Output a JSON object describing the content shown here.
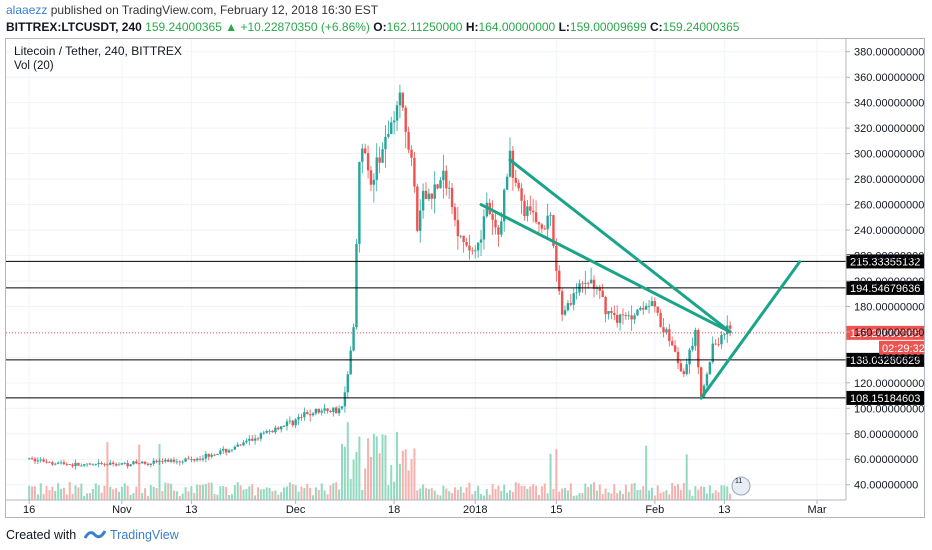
{
  "header": {
    "author": "alaaezz",
    "published": "published on TradingView.com, February 12, 2018 16:30 EST",
    "symbol": "BITTREX:LTCUSDT, 240",
    "last": "159.24000365",
    "change": "+10.22870350 (+6.86%)",
    "o_label": "O:",
    "o_value": "162.11250000",
    "h_label": "H:",
    "h_value": "164.00000000",
    "l_label": "L:",
    "l_value": "159.00009699",
    "c_label": "C:",
    "c_value": "159.24000365"
  },
  "footer": {
    "created_with": "Created with",
    "brand": "TradingView"
  },
  "chart_data": {
    "type": "candlestick",
    "title": "Litecoin / Tether, 240, BITTREX",
    "volume_label": "Vol (20)",
    "y_axis": {
      "range": [
        28,
        390
      ],
      "ticks": [
        "40.00000000",
        "60.00000000",
        "80.00000000",
        "100.00000000",
        "120.00000000",
        "140.00000000",
        "160.00000000",
        "180.00000000",
        "200.00000000",
        "220.00000000",
        "240.00000000",
        "260.00000000",
        "280.00000000",
        "300.00000000",
        "320.00000000",
        "340.00000000",
        "360.00000000",
        "380.00000000"
      ]
    },
    "x_axis": {
      "labels": [
        "16",
        "Nov",
        "13",
        "Dec",
        "18",
        "2018",
        "15",
        "Feb",
        "13",
        "Mar"
      ]
    },
    "horizontal_levels": [
      {
        "value": 215.33355132,
        "label": "215.33355132"
      },
      {
        "value": 194.54679636,
        "label": "194.54679636"
      },
      {
        "value": 138.03280629,
        "label": "138.03280629"
      },
      {
        "value": 108.15184603,
        "label": "108.15184603"
      }
    ],
    "last_price": {
      "value": 159.24000365,
      "label": "159.24000365",
      "countdown": "02:29:32"
    },
    "trendlines": [
      {
        "from": [
          "Jan 07",
          295
        ],
        "to": [
          "Feb 14",
          160
        ]
      },
      {
        "from": [
          "Jan 02",
          260
        ],
        "to": [
          "Feb 14",
          160
        ]
      },
      {
        "from": [
          "Feb 09",
          108
        ],
        "to": [
          "Feb 26",
          215
        ]
      }
    ],
    "price_path": [
      [
        "Oct 16",
        60
      ],
      [
        "Oct 25",
        55
      ],
      [
        "Nov 04",
        57
      ],
      [
        "Nov 13",
        60
      ],
      [
        "Nov 20",
        68
      ],
      [
        "Nov 28",
        85
      ],
      [
        "Dec 04",
        97
      ],
      [
        "Dec 09",
        100
      ],
      [
        "Dec 11",
        160
      ],
      [
        "Dec 12",
        290
      ],
      [
        "Dec 13",
        305
      ],
      [
        "Dec 14",
        275
      ],
      [
        "Dec 16",
        300
      ],
      [
        "Dec 19",
        355
      ],
      [
        "Dec 21",
        300
      ],
      [
        "Dec 22",
        240
      ],
      [
        "Dec 23",
        265
      ],
      [
        "Dec 27",
        280
      ],
      [
        "Dec 30",
        225
      ],
      [
        "Jan 01",
        225
      ],
      [
        "Jan 03",
        255
      ],
      [
        "Jan 05",
        235
      ],
      [
        "Jan 07",
        300
      ],
      [
        "Jan 09",
        260
      ],
      [
        "Jan 12",
        245
      ],
      [
        "Jan 14",
        245
      ],
      [
        "Jan 16",
        175
      ],
      [
        "Jan 18",
        190
      ],
      [
        "Jan 21",
        200
      ],
      [
        "Jan 24",
        175
      ],
      [
        "Jan 27",
        170
      ],
      [
        "Jan 31",
        185
      ],
      [
        "Feb 03",
        160
      ],
      [
        "Feb 06",
        125
      ],
      [
        "Feb 08",
        160
      ],
      [
        "Feb 09",
        110
      ],
      [
        "Feb 11",
        148
      ],
      [
        "Feb 13",
        160
      ],
      [
        "Feb 14",
        159.24
      ]
    ]
  }
}
